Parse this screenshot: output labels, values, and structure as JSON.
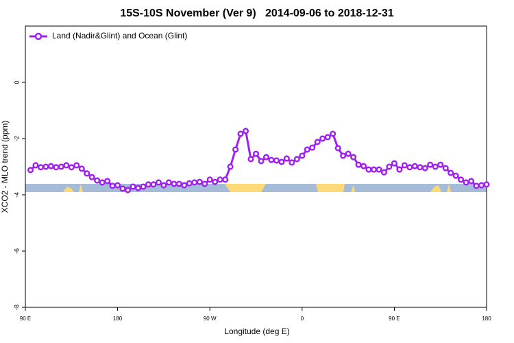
{
  "chart_data": {
    "type": "line",
    "title": "15S-10S November (Ver 9)   2014-09-06 to 2018-12-31",
    "xlabel": "Longitude (deg E)",
    "ylabel": "XCO2 - MLO trend (ppm)",
    "x": [
      95,
      100,
      105,
      110,
      115,
      120,
      125,
      130,
      135,
      140,
      145,
      150,
      155,
      160,
      165,
      170,
      175,
      180,
      185,
      190,
      195,
      200,
      205,
      210,
      215,
      220,
      225,
      230,
      235,
      240,
      245,
      250,
      255,
      260,
      265,
      270,
      275,
      280,
      285,
      290,
      295,
      300,
      305,
      310,
      315,
      320,
      325,
      330,
      335,
      340,
      345,
      350,
      355,
      360,
      365,
      370,
      375,
      380,
      385,
      390,
      395,
      400,
      405,
      410,
      415,
      420,
      425,
      430,
      435,
      440,
      445,
      450,
      455,
      460,
      465,
      470,
      475,
      480,
      485,
      490,
      495,
      500,
      505,
      510,
      515,
      520,
      525,
      530,
      535,
      540
    ],
    "series": [
      {
        "name": "Land (Nadir&Glint) and Ocean (Glint)",
        "color": "#a020f0",
        "values": [
          -3.12,
          -2.95,
          -3.02,
          -3.0,
          -2.98,
          -3.02,
          -3.0,
          -2.95,
          -3.02,
          -2.95,
          -3.07,
          -3.24,
          -3.37,
          -3.49,
          -3.56,
          -3.51,
          -3.68,
          -3.66,
          -3.78,
          -3.83,
          -3.71,
          -3.76,
          -3.71,
          -3.63,
          -3.63,
          -3.56,
          -3.66,
          -3.56,
          -3.61,
          -3.61,
          -3.66,
          -3.59,
          -3.56,
          -3.54,
          -3.61,
          -3.46,
          -3.54,
          -3.46,
          -3.46,
          -3.0,
          -2.39,
          -1.83,
          -1.73,
          -2.73,
          -2.54,
          -2.8,
          -2.66,
          -2.76,
          -2.78,
          -2.83,
          -2.71,
          -2.85,
          -2.73,
          -2.61,
          -2.39,
          -2.32,
          -2.12,
          -2.0,
          -1.95,
          -1.83,
          -2.34,
          -2.61,
          -2.54,
          -2.66,
          -2.93,
          -2.98,
          -3.1,
          -3.1,
          -3.1,
          -3.2,
          -3.0,
          -2.88,
          -3.1,
          -2.95,
          -3.02,
          -2.98,
          -3.02,
          -3.05,
          -2.93,
          -3.0,
          -2.93,
          -3.05,
          -3.22,
          -3.32,
          -3.46,
          -3.56,
          -3.51,
          -3.68,
          -3.66,
          -3.63
        ]
      }
    ],
    "xlim": [
      90,
      540
    ],
    "xticks": [
      {
        "value": 90,
        "label": "90 E"
      },
      180,
      {
        "value": 270,
        "label": "90 W"
      },
      {
        "value": 360,
        "label": "0"
      },
      {
        "value": 450,
        "label": "90 E"
      },
      {
        "value": 540,
        "label": "180"
      }
    ],
    "ylim": [
      -8,
      2
    ],
    "yticks": [
      -8,
      -6,
      -4,
      -2,
      0
    ],
    "legend": "upper left"
  }
}
